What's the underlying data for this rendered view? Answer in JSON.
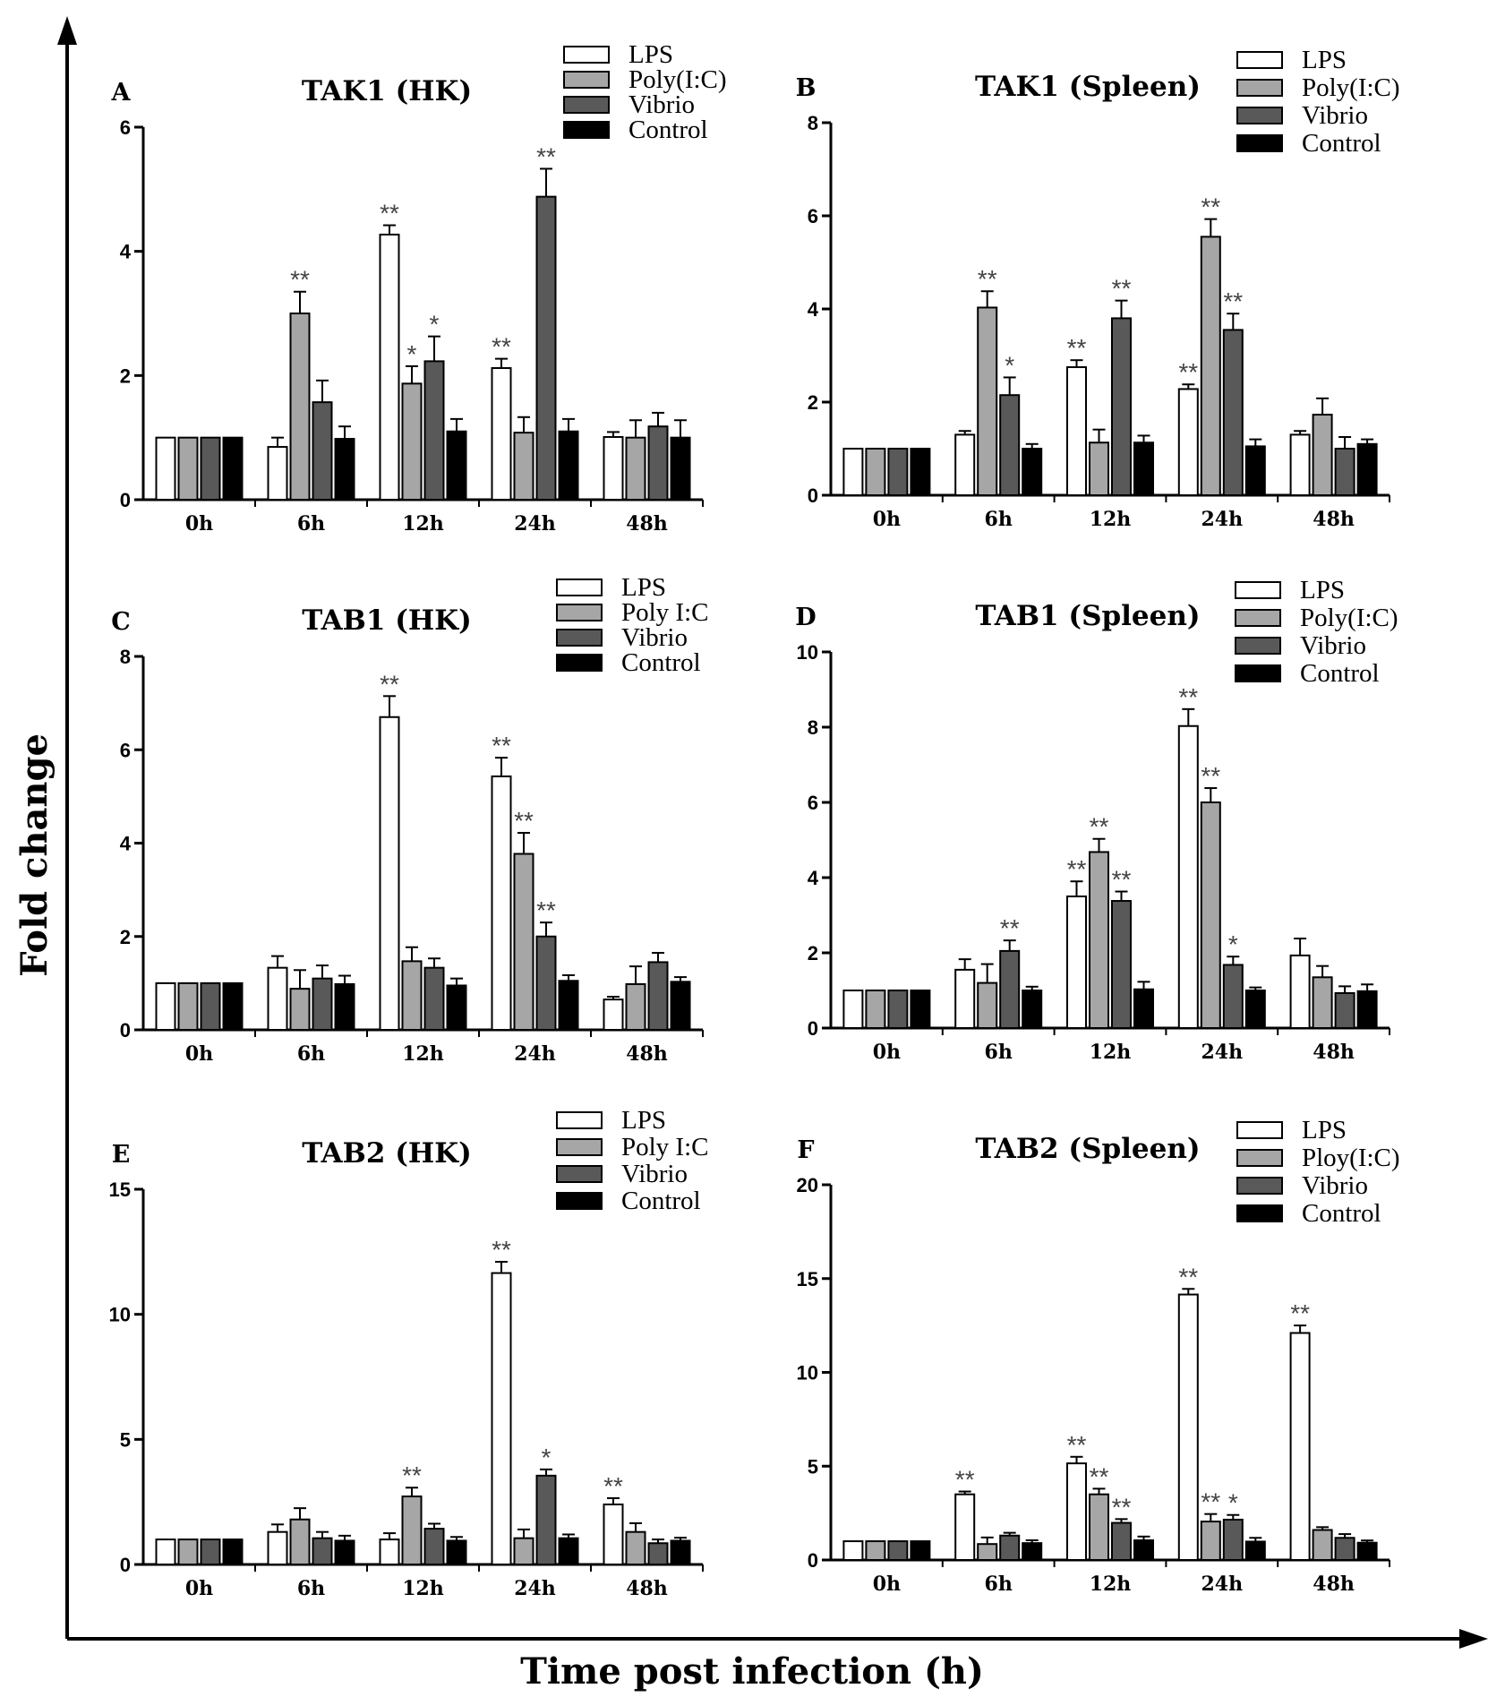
{
  "figure": {
    "ylabel": "Fold change",
    "xlabel": "Time post infection (h)"
  },
  "colors": {
    "LPS": "#ffffff",
    "Poly": "#a6a6a6",
    "Vibrio": "#595959",
    "Control": "#000000"
  },
  "chart_data": [
    {
      "type": "bar",
      "letter": "A",
      "title": "TAK1 (HK)",
      "categories": [
        "0h",
        "6h",
        "12h",
        "24h",
        "48h"
      ],
      "ylim": [
        0,
        6
      ],
      "yticks": [
        "0",
        "2",
        "4",
        "6"
      ],
      "tick_step": 2,
      "legend": [
        "LPS",
        "Poly(I:C)",
        "Vibrio",
        "Control"
      ],
      "series": [
        {
          "name": "LPS",
          "values": [
            1.0,
            0.85,
            4.27,
            2.12,
            1.01
          ],
          "errors": [
            0,
            0.15,
            0.15,
            0.15,
            0.08
          ],
          "sig": [
            "",
            "",
            "**",
            "**",
            ""
          ]
        },
        {
          "name": "Poly(I:C)",
          "values": [
            1.0,
            3.0,
            1.87,
            1.08,
            1.0
          ],
          "errors": [
            0,
            0.35,
            0.28,
            0.25,
            0.28
          ],
          "sig": [
            "",
            "**",
            "*",
            "",
            ""
          ]
        },
        {
          "name": "Vibrio",
          "values": [
            1.0,
            1.57,
            2.23,
            4.88,
            1.18
          ],
          "errors": [
            0,
            0.35,
            0.4,
            0.45,
            0.22
          ],
          "sig": [
            "",
            "",
            "*",
            "**",
            ""
          ]
        },
        {
          "name": "Control",
          "values": [
            1.0,
            0.98,
            1.1,
            1.1,
            1.0
          ],
          "errors": [
            0,
            0.2,
            0.2,
            0.2,
            0.28
          ],
          "sig": [
            "",
            "",
            "",
            "",
            ""
          ]
        }
      ]
    },
    {
      "type": "bar",
      "letter": "B",
      "title": "TAK1 (Spleen)",
      "categories": [
        "0h",
        "6h",
        "12h",
        "24h",
        "48h"
      ],
      "ylim": [
        0,
        8
      ],
      "yticks": [
        "0",
        "2",
        "4",
        "6",
        "8"
      ],
      "tick_step": 2,
      "legend": [
        "LPS",
        "Poly(I:C)",
        "Vibrio",
        "Control"
      ],
      "series": [
        {
          "name": "LPS",
          "values": [
            1.0,
            1.3,
            2.75,
            2.28,
            1.3
          ],
          "errors": [
            0,
            0.08,
            0.15,
            0.1,
            0.08
          ],
          "sig": [
            "",
            "",
            "**",
            "**",
            ""
          ]
        },
        {
          "name": "Poly(I:C)",
          "values": [
            1.0,
            4.03,
            1.13,
            5.55,
            1.73
          ],
          "errors": [
            0,
            0.35,
            0.28,
            0.38,
            0.35
          ],
          "sig": [
            "",
            "**",
            "",
            "**",
            ""
          ]
        },
        {
          "name": "Vibrio",
          "values": [
            1.0,
            2.15,
            3.8,
            3.55,
            1.0
          ],
          "errors": [
            0,
            0.38,
            0.38,
            0.35,
            0.25
          ],
          "sig": [
            "",
            "*",
            "**",
            "**",
            ""
          ]
        },
        {
          "name": "Control",
          "values": [
            1.0,
            1.0,
            1.13,
            1.05,
            1.1
          ],
          "errors": [
            0,
            0.1,
            0.15,
            0.15,
            0.1
          ],
          "sig": [
            "",
            "",
            "",
            "",
            ""
          ]
        }
      ]
    },
    {
      "type": "bar",
      "letter": "C",
      "title": "TAB1 (HK)",
      "categories": [
        "0h",
        "6h",
        "12h",
        "24h",
        "48h"
      ],
      "ylim": [
        0,
        8
      ],
      "yticks": [
        "0",
        "2",
        "4",
        "6",
        "8"
      ],
      "tick_step": 2,
      "legend": [
        "LPS",
        "Poly I:C",
        "Vibrio",
        "Control"
      ],
      "series": [
        {
          "name": "LPS",
          "values": [
            1.0,
            1.33,
            6.7,
            5.43,
            0.65
          ],
          "errors": [
            0,
            0.25,
            0.45,
            0.4,
            0.06
          ],
          "sig": [
            "",
            "",
            "**",
            "**",
            ""
          ]
        },
        {
          "name": "Poly I:C",
          "values": [
            1.0,
            0.88,
            1.47,
            3.77,
            0.98
          ],
          "errors": [
            0,
            0.4,
            0.3,
            0.45,
            0.38
          ],
          "sig": [
            "",
            "",
            "",
            "**",
            ""
          ]
        },
        {
          "name": "Vibrio",
          "values": [
            1.0,
            1.1,
            1.33,
            2.0,
            1.45
          ],
          "errors": [
            0,
            0.28,
            0.2,
            0.3,
            0.2
          ],
          "sig": [
            "",
            "",
            "",
            "**",
            ""
          ]
        },
        {
          "name": "Control",
          "values": [
            1.0,
            0.98,
            0.95,
            1.05,
            1.03
          ],
          "errors": [
            0,
            0.18,
            0.15,
            0.12,
            0.1
          ],
          "sig": [
            "",
            "",
            "",
            "",
            ""
          ]
        }
      ]
    },
    {
      "type": "bar",
      "letter": "D",
      "title": "TAB1 (Spleen)",
      "categories": [
        "0h",
        "6h",
        "12h",
        "24h",
        "48h"
      ],
      "ylim": [
        0,
        10
      ],
      "yticks": [
        "0",
        "2",
        "4",
        "6",
        "8",
        "10"
      ],
      "tick_step": 2,
      "legend": [
        "LPS",
        "Poly(I:C)",
        "Vibrio",
        "Control"
      ],
      "series": [
        {
          "name": "LPS",
          "values": [
            1.0,
            1.55,
            3.5,
            8.03,
            1.93
          ],
          "errors": [
            0,
            0.28,
            0.4,
            0.45,
            0.45
          ],
          "sig": [
            "",
            "",
            "**",
            "**",
            ""
          ]
        },
        {
          "name": "Poly(I:C)",
          "values": [
            1.0,
            1.2,
            4.68,
            6.0,
            1.35
          ],
          "errors": [
            0,
            0.5,
            0.35,
            0.38,
            0.3
          ],
          "sig": [
            "",
            "",
            "**",
            "**",
            ""
          ]
        },
        {
          "name": "Vibrio",
          "values": [
            1.0,
            2.05,
            3.38,
            1.68,
            0.93
          ],
          "errors": [
            0,
            0.28,
            0.25,
            0.22,
            0.18
          ],
          "sig": [
            "",
            "**",
            "**",
            "*",
            ""
          ]
        },
        {
          "name": "Control",
          "values": [
            1.0,
            1.0,
            1.03,
            1.0,
            0.98
          ],
          "errors": [
            0,
            0.1,
            0.2,
            0.08,
            0.18
          ],
          "sig": [
            "",
            "",
            "",
            "",
            ""
          ]
        }
      ]
    },
    {
      "type": "bar",
      "letter": "E",
      "title": "TAB2 (HK)",
      "categories": [
        "0h",
        "6h",
        "12h",
        "24h",
        "48h"
      ],
      "ylim": [
        0,
        15
      ],
      "yticks": [
        "0",
        "5",
        "10",
        "15"
      ],
      "tick_step": 5,
      "legend": [
        "LPS",
        "Poly I:C",
        "Vibrio",
        "Control"
      ],
      "series": [
        {
          "name": "LPS",
          "values": [
            1.0,
            1.3,
            1.0,
            11.65,
            2.4
          ],
          "errors": [
            0,
            0.3,
            0.25,
            0.45,
            0.25
          ],
          "sig": [
            "",
            "",
            "",
            "**",
            "**"
          ]
        },
        {
          "name": "Poly I:C",
          "values": [
            1.0,
            1.8,
            2.72,
            1.05,
            1.3
          ],
          "errors": [
            0,
            0.45,
            0.35,
            0.35,
            0.35
          ],
          "sig": [
            "",
            "",
            "**",
            "",
            ""
          ]
        },
        {
          "name": "Vibrio",
          "values": [
            1.0,
            1.05,
            1.43,
            3.55,
            0.85
          ],
          "errors": [
            0,
            0.25,
            0.2,
            0.25,
            0.15
          ],
          "sig": [
            "",
            "",
            "",
            "*",
            ""
          ]
        },
        {
          "name": "Control",
          "values": [
            1.0,
            0.95,
            0.95,
            1.05,
            0.95
          ],
          "errors": [
            0,
            0.2,
            0.15,
            0.15,
            0.12
          ],
          "sig": [
            "",
            "",
            "",
            "",
            ""
          ]
        }
      ]
    },
    {
      "type": "bar",
      "letter": "F",
      "title": "TAB2 (Spleen)",
      "categories": [
        "0h",
        "6h",
        "12h",
        "24h",
        "48h"
      ],
      "ylim": [
        0,
        20
      ],
      "yticks": [
        "0",
        "5",
        "10",
        "15",
        "20"
      ],
      "tick_step": 5,
      "legend": [
        "LPS",
        "Ploy(I:C)",
        "Vibrio",
        "Control"
      ],
      "series": [
        {
          "name": "LPS",
          "values": [
            1.0,
            3.5,
            5.15,
            14.15,
            12.1
          ],
          "errors": [
            0,
            0.15,
            0.35,
            0.3,
            0.4
          ],
          "sig": [
            "",
            "**",
            "**",
            "**",
            "**"
          ]
        },
        {
          "name": "Ploy(I:C)",
          "values": [
            1.0,
            0.85,
            3.5,
            2.05,
            1.6
          ],
          "errors": [
            0,
            0.35,
            0.3,
            0.4,
            0.15
          ],
          "sig": [
            "",
            "",
            "**",
            "**",
            ""
          ]
        },
        {
          "name": "Vibrio",
          "values": [
            1.0,
            1.3,
            1.98,
            2.15,
            1.18
          ],
          "errors": [
            0,
            0.15,
            0.2,
            0.25,
            0.2
          ],
          "sig": [
            "",
            "",
            "**",
            "*",
            ""
          ]
        },
        {
          "name": "Control",
          "values": [
            1.0,
            0.9,
            1.05,
            0.98,
            0.92
          ],
          "errors": [
            0,
            0.15,
            0.2,
            0.2,
            0.12
          ],
          "sig": [
            "",
            "",
            "",
            "",
            ""
          ]
        }
      ]
    }
  ]
}
